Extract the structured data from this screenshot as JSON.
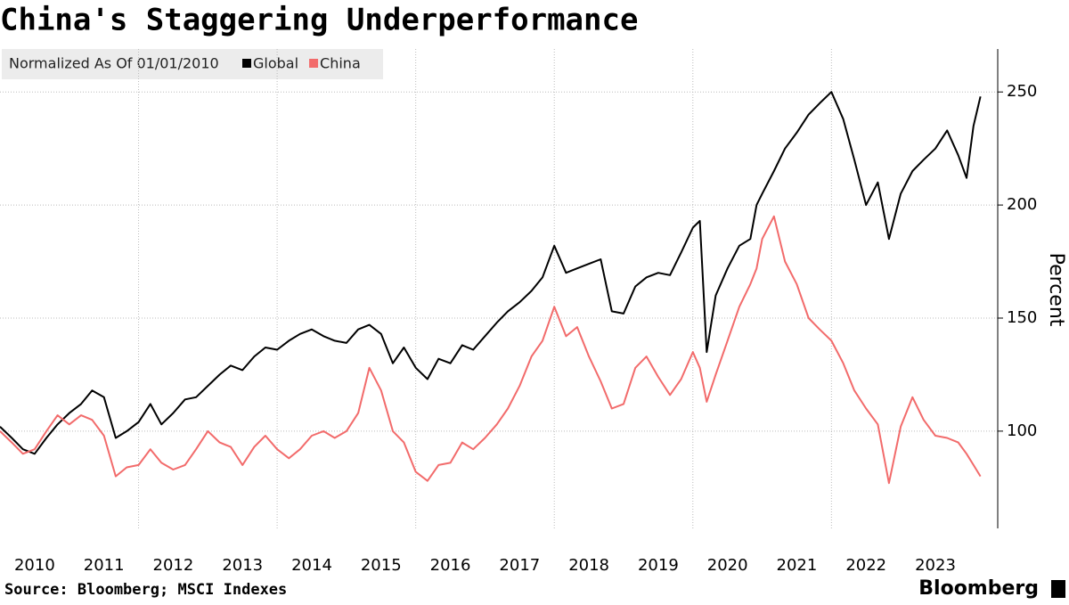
{
  "chart_data": {
    "type": "line",
    "title": "China's Staggering Underperformance",
    "legend_title": "Normalized As Of 01/01/2010",
    "y_label": "Percent",
    "source": "Source: Bloomberg; MSCI Indexes",
    "brand": "Bloomberg",
    "legend": "top-left",
    "grid": true,
    "xlim": [
      2010,
      2024.4
    ],
    "xticks": [
      2010,
      2011,
      2012,
      2013,
      2014,
      2015,
      2016,
      2017,
      2018,
      2019,
      2020,
      2021,
      2022,
      2023
    ],
    "ylim": [
      57,
      269
    ],
    "yticks": [
      100,
      150,
      200,
      250
    ],
    "x": [
      2010,
      2010.17,
      2010.33,
      2010.5,
      2010.67,
      2010.83,
      2011,
      2011.17,
      2011.33,
      2011.5,
      2011.67,
      2011.83,
      2012,
      2012.17,
      2012.33,
      2012.5,
      2012.67,
      2012.83,
      2013,
      2013.17,
      2013.33,
      2013.5,
      2013.67,
      2013.83,
      2014,
      2014.17,
      2014.33,
      2014.5,
      2014.67,
      2014.83,
      2015,
      2015.17,
      2015.33,
      2015.5,
      2015.67,
      2015.83,
      2016,
      2016.17,
      2016.33,
      2016.5,
      2016.67,
      2016.83,
      2017,
      2017.17,
      2017.33,
      2017.5,
      2017.67,
      2017.83,
      2018,
      2018.17,
      2018.33,
      2018.5,
      2018.67,
      2018.83,
      2019,
      2019.17,
      2019.33,
      2019.5,
      2019.67,
      2019.83,
      2020,
      2020.1,
      2020.2,
      2020.33,
      2020.5,
      2020.67,
      2020.83,
      2020.92,
      2021,
      2021.17,
      2021.33,
      2021.5,
      2021.67,
      2021.83,
      2022,
      2022.17,
      2022.33,
      2022.5,
      2022.67,
      2022.83,
      2023,
      2023.17,
      2023.33,
      2023.5,
      2023.67,
      2023.83,
      2023.95,
      2024.05,
      2024.15
    ],
    "series": [
      {
        "name": "Global",
        "color": "#000000",
        "values": [
          102,
          97,
          92,
          90,
          97,
          103,
          108,
          112,
          118,
          115,
          97,
          100,
          104,
          112,
          103,
          108,
          114,
          115,
          120,
          125,
          129,
          127,
          133,
          137,
          136,
          140,
          143,
          145,
          142,
          140,
          139,
          145,
          147,
          143,
          130,
          137,
          128,
          123,
          132,
          130,
          138,
          136,
          142,
          148,
          153,
          157,
          162,
          168,
          182,
          170,
          172,
          174,
          176,
          153,
          152,
          164,
          168,
          170,
          169,
          179,
          190,
          193,
          135,
          160,
          172,
          182,
          185,
          200,
          205,
          215,
          225,
          232,
          240,
          245,
          250,
          238,
          220,
          200,
          210,
          185,
          205,
          215,
          220,
          225,
          233,
          222,
          212,
          235,
          248
        ]
      },
      {
        "name": "China",
        "color": "#f26b6b",
        "values": [
          100,
          95,
          90,
          92,
          100,
          107,
          103,
          107,
          105,
          98,
          80,
          84,
          85,
          92,
          86,
          83,
          85,
          92,
          100,
          95,
          93,
          85,
          93,
          98,
          92,
          88,
          92,
          98,
          100,
          97,
          100,
          108,
          128,
          118,
          100,
          95,
          82,
          78,
          85,
          86,
          95,
          92,
          97,
          103,
          110,
          120,
          133,
          140,
          155,
          142,
          146,
          133,
          122,
          110,
          112,
          128,
          133,
          124,
          116,
          123,
          135,
          128,
          113,
          125,
          140,
          155,
          165,
          172,
          185,
          195,
          175,
          165,
          150,
          145,
          140,
          130,
          118,
          110,
          103,
          77,
          102,
          115,
          105,
          98,
          97,
          95,
          90,
          85,
          80
        ]
      }
    ]
  }
}
